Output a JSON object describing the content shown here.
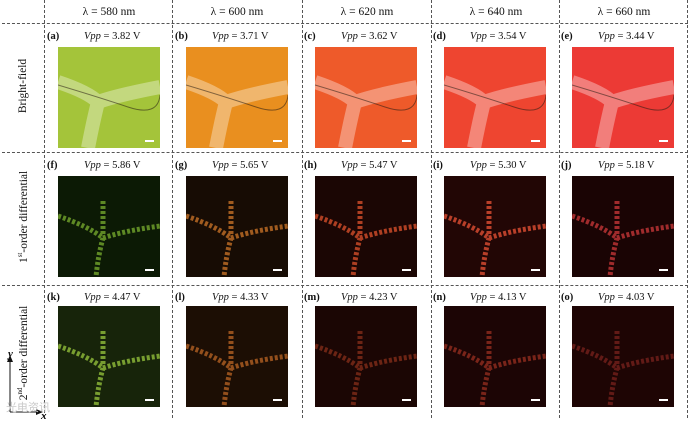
{
  "columns": [
    "λ = 580 nm",
    "λ = 600 nm",
    "λ = 620 nm",
    "λ = 640 nm",
    "λ = 660 nm"
  ],
  "rows": [
    {
      "label": "Bright-field",
      "kind": "bright",
      "panels": [
        {
          "letter": "(a)",
          "vpp": "3.82 V",
          "color": "#a4c43a"
        },
        {
          "letter": "(b)",
          "vpp": "3.71 V",
          "color": "#e98f1f"
        },
        {
          "letter": "(c)",
          "vpp": "3.62 V",
          "color": "#ee5a2a"
        },
        {
          "letter": "(d)",
          "vpp": "3.54 V",
          "color": "#ee4530"
        },
        {
          "letter": "(e)",
          "vpp": "3.44 V",
          "color": "#ec3a35"
        }
      ]
    },
    {
      "label_sup": "st",
      "label_pre": "1",
      "label": "-order differential",
      "kind": "diff",
      "panels": [
        {
          "letter": "(f)",
          "vpp": "5.86 V",
          "color": "#0c1a05",
          "edge": "#6d9e2a"
        },
        {
          "letter": "(g)",
          "vpp": "5.65 V",
          "color": "#170c04",
          "edge": "#b96a24"
        },
        {
          "letter": "(h)",
          "vpp": "5.47 V",
          "color": "#1b0604",
          "edge": "#c84a28"
        },
        {
          "letter": "(i)",
          "vpp": "5.30 V",
          "color": "#220605",
          "edge": "#d24a30"
        },
        {
          "letter": "(j)",
          "vpp": "5.18 V",
          "color": "#1a0404",
          "edge": "#b83234"
        }
      ]
    },
    {
      "label_sup": "nd",
      "label_pre": "2",
      "label": "-order differential",
      "kind": "diff",
      "panels": [
        {
          "letter": "(k)",
          "vpp": "4.47 V",
          "color": "#17240a",
          "edge": "#8ab437"
        },
        {
          "letter": "(l)",
          "vpp": "4.33 V",
          "color": "#1c0e04",
          "edge": "#a85b21"
        },
        {
          "letter": "(m)",
          "vpp": "4.23 V",
          "color": "#1b0604",
          "edge": "#7a2a18"
        },
        {
          "letter": "(n)",
          "vpp": "4.13 V",
          "color": "#1c0505",
          "edge": "#8a2a1d"
        },
        {
          "letter": "(o)",
          "vpp": "4.03 V",
          "color": "#1e0504",
          "edge": "#6e1e1a"
        }
      ]
    }
  ],
  "vpp_symbol": "Vpp",
  "axis": {
    "x": "x",
    "y": "y"
  },
  "watermark": "光电资讯"
}
